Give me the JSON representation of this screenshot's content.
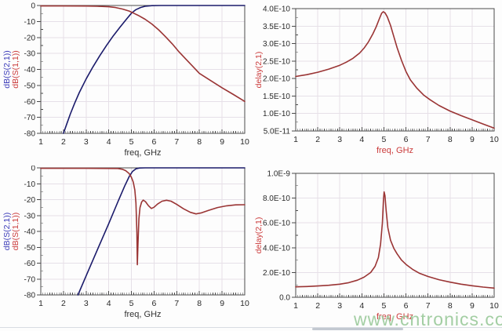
{
  "page": {
    "watermark": {
      "text": "www.cntronics.com",
      "color": "#9ccb9c"
    }
  },
  "style": {
    "grid": "#e6e0e8",
    "frame": "#4a4a4a",
    "tick_text": "#2a2a2a",
    "blue_curve": "#1b1b6b",
    "red_curve": "#9a3434",
    "blue_label": "#3a3ab8",
    "red_label": "#cb3b3b",
    "dark_label": "#333333"
  },
  "chart_data": [
    {
      "type": "line",
      "position": "top-left",
      "title": "",
      "xlabel": "freq, GHz",
      "xlabel_color": "#333333",
      "xlim": [
        1,
        10
      ],
      "ylim": [
        -80,
        0
      ],
      "grid": true,
      "legend_position": "rotated-y-axis",
      "x_ticks": [
        1,
        2,
        3,
        4,
        5,
        6,
        7,
        8,
        9,
        10
      ],
      "y_ticks": [
        {
          "v": 0,
          "label": "0"
        },
        {
          "v": -10,
          "label": "-10"
        },
        {
          "v": -20,
          "label": "-20"
        },
        {
          "v": -30,
          "label": "-30"
        },
        {
          "v": -40,
          "label": "-40"
        },
        {
          "v": -50,
          "label": "-50"
        },
        {
          "v": -60,
          "label": "-60"
        },
        {
          "v": -70,
          "label": "-70"
        },
        {
          "v": -80,
          "label": "-80"
        }
      ],
      "y_axis_labels": [
        {
          "text": "dB(S(2,1))",
          "color": "#3a3ab8"
        },
        {
          "text": "dB(S(1,1))",
          "color": "#cb3b3b"
        }
      ],
      "series": [
        {
          "name": "dB(S(2,1))",
          "color": "#1b1b6b",
          "points": [
            [
              2.0,
              -80
            ],
            [
              2.15,
              -74
            ],
            [
              2.3,
              -68
            ],
            [
              2.5,
              -61
            ],
            [
              2.7,
              -54.5
            ],
            [
              3.0,
              -46
            ],
            [
              3.3,
              -38.5
            ],
            [
              3.6,
              -31.5
            ],
            [
              3.9,
              -25
            ],
            [
              4.2,
              -19
            ],
            [
              4.5,
              -13.5
            ],
            [
              4.8,
              -8.2
            ],
            [
              5.0,
              -4.8
            ],
            [
              5.2,
              -2.6
            ],
            [
              5.4,
              -1.3
            ],
            [
              5.6,
              -0.5
            ],
            [
              5.9,
              -0.1
            ],
            [
              6.3,
              0
            ],
            [
              10,
              0
            ]
          ]
        },
        {
          "name": "dB(S(1,1))",
          "color": "#9a3434",
          "points": [
            [
              1,
              -0.3
            ],
            [
              2,
              -0.3
            ],
            [
              3,
              -0.35
            ],
            [
              3.5,
              -0.5
            ],
            [
              4,
              -0.8
            ],
            [
              4.3,
              -1.3
            ],
            [
              4.6,
              -2.2
            ],
            [
              4.9,
              -3.5
            ],
            [
              5.1,
              -4.8
            ],
            [
              5.3,
              -6.2
            ],
            [
              5.6,
              -8.6
            ],
            [
              5.9,
              -11.6
            ],
            [
              6.2,
              -15.2
            ],
            [
              6.5,
              -19.5
            ],
            [
              6.8,
              -24
            ],
            [
              7.1,
              -29
            ],
            [
              7.4,
              -33.5
            ],
            [
              7.7,
              -38
            ],
            [
              8.0,
              -42.5
            ],
            [
              8.5,
              -47
            ],
            [
              9.0,
              -51.5
            ],
            [
              9.5,
              -55.7
            ],
            [
              10,
              -60
            ]
          ]
        }
      ]
    },
    {
      "type": "line",
      "position": "top-right",
      "title": "",
      "xlabel": "freq, GHz",
      "xlabel_color": "#cb3b3b",
      "xlim": [
        1,
        10
      ],
      "ylim": [
        5e-11,
        4e-10
      ],
      "grid": true,
      "legend_position": "rotated-y-axis",
      "x_ticks": [
        1,
        2,
        3,
        4,
        5,
        6,
        7,
        8,
        9,
        10
      ],
      "y_ticks": [
        {
          "v": 4e-10,
          "label": "4.0E-10"
        },
        {
          "v": 3.5e-10,
          "label": "3.5E-10"
        },
        {
          "v": 3e-10,
          "label": "3.0E-10"
        },
        {
          "v": 2.5e-10,
          "label": "2.5E-10"
        },
        {
          "v": 2e-10,
          "label": "2.0E-10"
        },
        {
          "v": 1.5e-10,
          "label": "1.5E-10"
        },
        {
          "v": 1e-10,
          "label": "1.0E-10"
        },
        {
          "v": 5e-11,
          "label": "5.0E-11"
        }
      ],
      "y_axis_labels": [
        {
          "text": "delay(2,1)",
          "color": "#cb3b3b"
        }
      ],
      "series": [
        {
          "name": "delay(2,1)",
          "color": "#9a3434",
          "points": [
            [
              1,
              2.06e-10
            ],
            [
              1.5,
              2.11e-10
            ],
            [
              2,
              2.18e-10
            ],
            [
              2.5,
              2.27e-10
            ],
            [
              3,
              2.38e-10
            ],
            [
              3.3,
              2.47e-10
            ],
            [
              3.6,
              2.58e-10
            ],
            [
              3.9,
              2.73e-10
            ],
            [
              4.1,
              2.87e-10
            ],
            [
              4.3,
              3.05e-10
            ],
            [
              4.5,
              3.28e-10
            ],
            [
              4.65,
              3.48e-10
            ],
            [
              4.8,
              3.72e-10
            ],
            [
              4.9,
              3.87e-10
            ],
            [
              4.97,
              3.91e-10
            ],
            [
              5.05,
              3.88e-10
            ],
            [
              5.15,
              3.77e-10
            ],
            [
              5.3,
              3.52e-10
            ],
            [
              5.45,
              3.2e-10
            ],
            [
              5.6,
              2.88e-10
            ],
            [
              5.8,
              2.52e-10
            ],
            [
              6.0,
              2.2e-10
            ],
            [
              6.2,
              1.96e-10
            ],
            [
              6.5,
              1.72e-10
            ],
            [
              6.8,
              1.53e-10
            ],
            [
              7.1,
              1.39e-10
            ],
            [
              7.5,
              1.23e-10
            ],
            [
              8,
              1.07e-10
            ],
            [
              8.5,
              9.4e-11
            ],
            [
              9,
              8.2e-11
            ],
            [
              9.5,
              7e-11
            ],
            [
              10,
              5.8e-11
            ]
          ]
        }
      ]
    },
    {
      "type": "line",
      "position": "bottom-left",
      "title": "",
      "xlabel": "freq, GHz",
      "xlabel_color": "#333333",
      "xlim": [
        1,
        10
      ],
      "ylim": [
        -80,
        0
      ],
      "grid": true,
      "legend_position": "rotated-y-axis",
      "x_ticks": [
        1,
        2,
        3,
        4,
        5,
        6,
        7,
        8,
        9,
        10
      ],
      "y_ticks": [
        {
          "v": 0,
          "label": "0"
        },
        {
          "v": -10,
          "label": "-10"
        },
        {
          "v": -20,
          "label": "-20"
        },
        {
          "v": -30,
          "label": "-30"
        },
        {
          "v": -40,
          "label": "-40"
        },
        {
          "v": -50,
          "label": "-50"
        },
        {
          "v": -60,
          "label": "-60"
        },
        {
          "v": -70,
          "label": "-70"
        },
        {
          "v": -80,
          "label": "-80"
        }
      ],
      "y_axis_labels": [
        {
          "text": "dB(S(2,1))",
          "color": "#3a3ab8"
        },
        {
          "text": "dB(S(1,1))",
          "color": "#cb3b3b"
        }
      ],
      "series": [
        {
          "name": "dB(S(2,1))",
          "color": "#1b1b6b",
          "points": [
            [
              2.64,
              -80
            ],
            [
              3.0,
              -68
            ],
            [
              3.5,
              -51.5
            ],
            [
              4.0,
              -35
            ],
            [
              4.4,
              -21.5
            ],
            [
              4.7,
              -11.5
            ],
            [
              4.9,
              -5.5
            ],
            [
              5.05,
              -2.2
            ],
            [
              5.2,
              -0.6
            ],
            [
              5.35,
              -0.1
            ],
            [
              5.6,
              0
            ],
            [
              10,
              0
            ]
          ]
        },
        {
          "name": "dB(S(1,1))",
          "color": "#9a3434",
          "points": [
            [
              1,
              -0.3
            ],
            [
              3,
              -0.3
            ],
            [
              4.4,
              -0.4
            ],
            [
              4.6,
              -0.9
            ],
            [
              4.75,
              -1.8
            ],
            [
              4.9,
              -3.6
            ],
            [
              5.0,
              -6
            ],
            [
              5.08,
              -9
            ],
            [
              5.15,
              -14
            ],
            [
              5.2,
              -22
            ],
            [
              5.24,
              -40
            ],
            [
              5.26,
              -61
            ],
            [
              5.29,
              -48
            ],
            [
              5.33,
              -32
            ],
            [
              5.38,
              -25
            ],
            [
              5.45,
              -21.5
            ],
            [
              5.52,
              -20.3
            ],
            [
              5.62,
              -21.3
            ],
            [
              5.75,
              -23.8
            ],
            [
              5.88,
              -25.6
            ],
            [
              6.0,
              -24.8
            ],
            [
              6.15,
              -22.8
            ],
            [
              6.35,
              -21
            ],
            [
              6.55,
              -20.4
            ],
            [
              6.75,
              -21
            ],
            [
              7.0,
              -23
            ],
            [
              7.3,
              -25.8
            ],
            [
              7.6,
              -28
            ],
            [
              7.85,
              -29
            ],
            [
              8.1,
              -28.3
            ],
            [
              8.4,
              -26.8
            ],
            [
              8.8,
              -25
            ],
            [
              9.2,
              -23.9
            ],
            [
              9.6,
              -23.3
            ],
            [
              10,
              -23.2
            ]
          ]
        }
      ]
    },
    {
      "type": "line",
      "position": "bottom-right",
      "title": "",
      "xlabel": "freq, GHz",
      "xlabel_color": "#cb3b3b",
      "xlim": [
        1,
        10
      ],
      "ylim": [
        0,
        1e-09
      ],
      "grid": true,
      "legend_position": "rotated-y-axis",
      "x_ticks": [
        1,
        2,
        3,
        4,
        5,
        6,
        7,
        8,
        9,
        10
      ],
      "y_ticks": [
        {
          "v": 1e-09,
          "label": "1.0E-9"
        },
        {
          "v": 8e-10,
          "label": "8.0E-10"
        },
        {
          "v": 6e-10,
          "label": "6.0E-10"
        },
        {
          "v": 4e-10,
          "label": "4.0E-10"
        },
        {
          "v": 2e-10,
          "label": "2.0E-10"
        },
        {
          "v": 0,
          "label": "0.0"
        }
      ],
      "y_axis_labels": [
        {
          "text": "delay(2,1)",
          "color": "#cb3b3b"
        }
      ],
      "series": [
        {
          "name": "delay(2,1)",
          "color": "#9a3434",
          "points": [
            [
              1,
              8.4e-11
            ],
            [
              1.5,
              8.7e-11
            ],
            [
              2,
              9.1e-11
            ],
            [
              2.5,
              9.7e-11
            ],
            [
              3,
              1.06e-10
            ],
            [
              3.4,
              1.18e-10
            ],
            [
              3.8,
              1.38e-10
            ],
            [
              4.1,
              1.62e-10
            ],
            [
              4.4,
              2e-10
            ],
            [
              4.6,
              2.5e-10
            ],
            [
              4.75,
              3.2e-10
            ],
            [
              4.85,
              4.3e-10
            ],
            [
              4.93,
              6e-10
            ],
            [
              4.98,
              7.9e-10
            ],
            [
              5.01,
              8.5e-10
            ],
            [
              5.05,
              8.2e-10
            ],
            [
              5.1,
              7e-10
            ],
            [
              5.18,
              5.6e-10
            ],
            [
              5.3,
              4.6e-10
            ],
            [
              5.45,
              3.95e-10
            ],
            [
              5.6,
              3.5e-10
            ],
            [
              5.8,
              3e-10
            ],
            [
              6.0,
              2.65e-10
            ],
            [
              6.3,
              2.25e-10
            ],
            [
              6.6,
              1.95e-10
            ],
            [
              7.0,
              1.68e-10
            ],
            [
              7.5,
              1.42e-10
            ],
            [
              8,
              1.22e-10
            ],
            [
              8.5,
              1.06e-10
            ],
            [
              9,
              9.3e-11
            ],
            [
              9.5,
              8.2e-11
            ],
            [
              10,
              7.4e-11
            ]
          ]
        }
      ]
    }
  ]
}
